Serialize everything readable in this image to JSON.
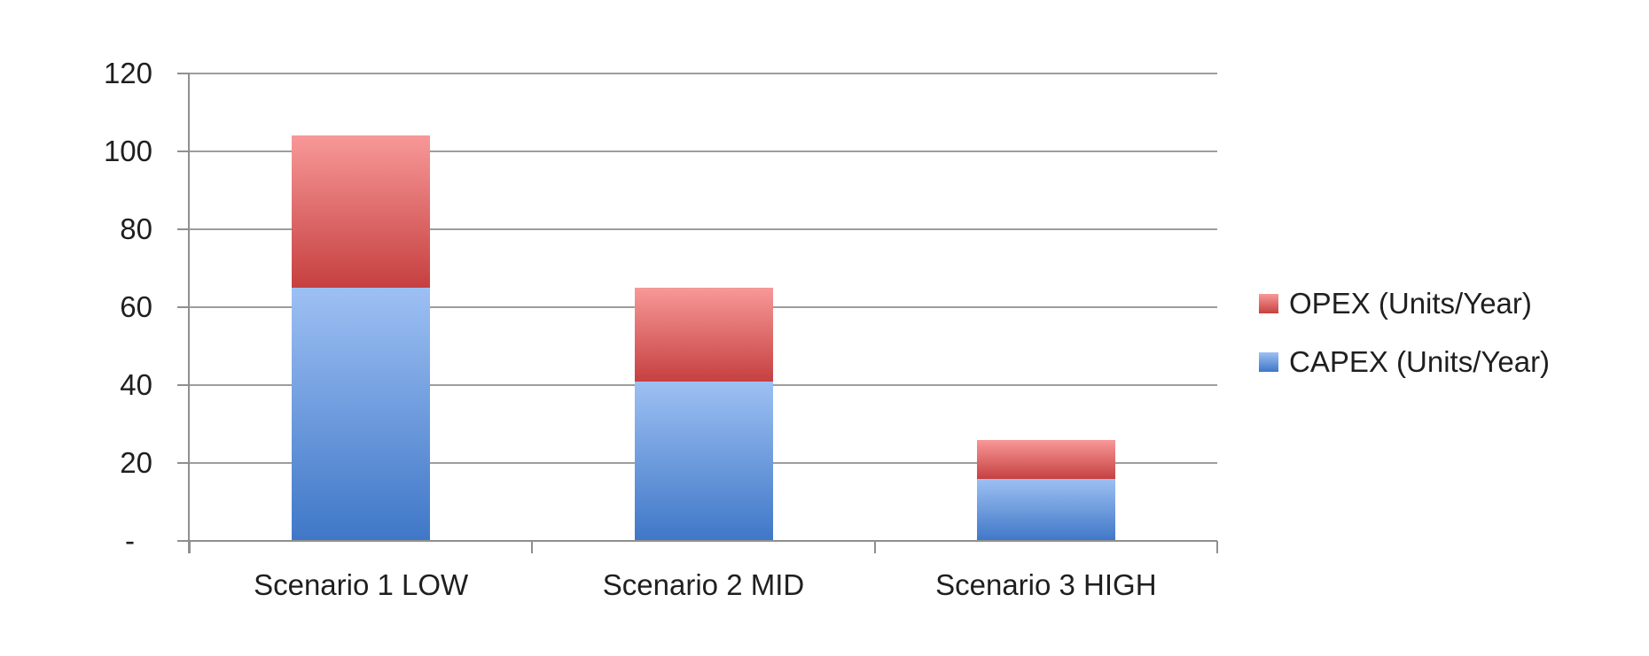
{
  "chart_data": {
    "type": "bar",
    "stacked": true,
    "title": "",
    "xlabel": "",
    "ylabel": "",
    "categories": [
      "Scenario 1 LOW",
      "Scenario 2 MID",
      "Scenario 3 HIGH"
    ],
    "series": [
      {
        "name": "CAPEX (Units/Year)",
        "values": [
          65,
          41,
          16
        ],
        "color_top": "#9dc0f3",
        "color_bottom": "#3f77c7"
      },
      {
        "name": "OPEX (Units/Year)",
        "values": [
          39,
          24,
          10
        ],
        "color_top": "#f89898",
        "color_bottom": "#c64040"
      }
    ],
    "totals": [
      104,
      65,
      26
    ],
    "ylim": [
      0,
      120
    ],
    "ytick_step": 20,
    "yticks": [
      {
        "value": 120,
        "label": "120"
      },
      {
        "value": 100,
        "label": "100"
      },
      {
        "value": 80,
        "label": "80"
      },
      {
        "value": 60,
        "label": "60"
      },
      {
        "value": 40,
        "label": "40"
      },
      {
        "value": 20,
        "label": "20"
      },
      {
        "value": 0,
        "label": "-"
      }
    ],
    "grid": true,
    "legend_position": "right",
    "legend": [
      {
        "label": "OPEX (Units/Year)",
        "color_top": "#f89898",
        "color_bottom": "#c64040"
      },
      {
        "label": "CAPEX (Units/Year)",
        "color_top": "#9dc0f3",
        "color_bottom": "#3f77c7"
      }
    ]
  },
  "colors": {
    "gridline": "#9d9d9d",
    "axis": "#8f8f8f",
    "text": "#1f1f1f",
    "background": "#ffffff"
  }
}
